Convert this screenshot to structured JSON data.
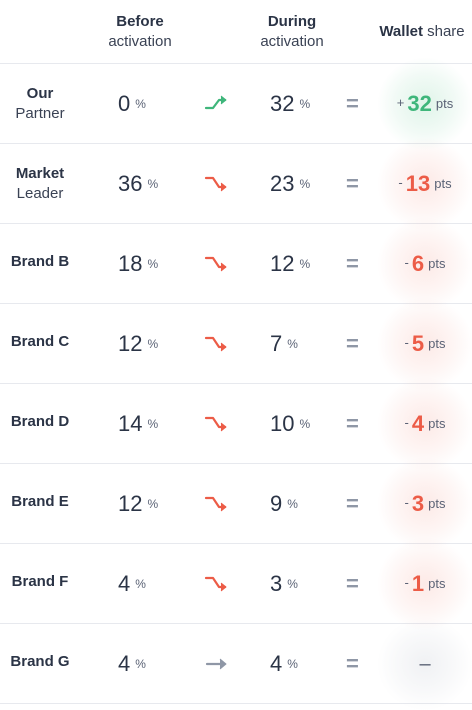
{
  "header": {
    "before_bold": "Before",
    "before_sub": "activation",
    "during_bold": "During",
    "during_sub": "activation",
    "wallet_bold": "Wallet",
    "wallet_sub": "share"
  },
  "percent_sign": "%",
  "equals_sign": "=",
  "pts_label": "pts",
  "colors": {
    "up": "#3fb67b",
    "down": "#ec5c47",
    "neutral": "#8f97a6"
  },
  "rows": [
    {
      "name1": "Our",
      "name2": "Partner",
      "before": "0",
      "during": "32",
      "trend": "up",
      "sign": "+",
      "share": "32"
    },
    {
      "name1": "Market",
      "name2": "Leader",
      "before": "36",
      "during": "23",
      "trend": "down",
      "sign": "-",
      "share": "13"
    },
    {
      "name1": "Brand B",
      "name2": "",
      "before": "18",
      "during": "12",
      "trend": "down",
      "sign": "-",
      "share": "6"
    },
    {
      "name1": "Brand C",
      "name2": "",
      "before": "12",
      "during": "7",
      "trend": "down",
      "sign": "-",
      "share": "5"
    },
    {
      "name1": "Brand D",
      "name2": "",
      "before": "14",
      "during": "10",
      "trend": "down",
      "sign": "-",
      "share": "4"
    },
    {
      "name1": "Brand E",
      "name2": "",
      "before": "12",
      "during": "9",
      "trend": "down",
      "sign": "-",
      "share": "3"
    },
    {
      "name1": "Brand F",
      "name2": "",
      "before": "4",
      "during": "3",
      "trend": "down",
      "sign": "-",
      "share": "1"
    },
    {
      "name1": "Brand G",
      "name2": "",
      "before": "4",
      "during": "4",
      "trend": "flat",
      "sign": "",
      "share": "–"
    }
  ]
}
